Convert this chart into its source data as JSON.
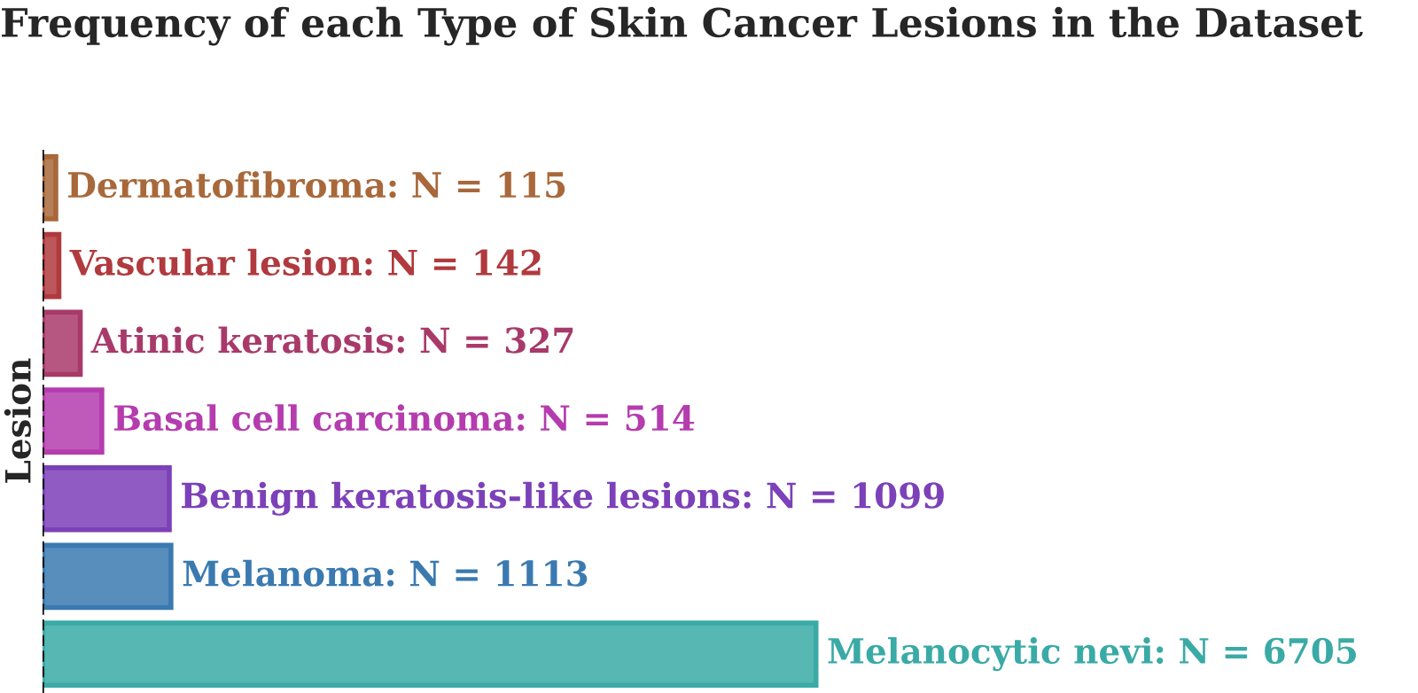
{
  "chart_data": {
    "type": "bar",
    "orientation": "horizontal",
    "title": "Frequency of each Type of Skin Cancer Lesions in the Dataset",
    "ylabel": "Lesion",
    "categories": [
      null,
      null,
      null,
      null,
      null,
      null,
      null
    ],
    "values": [
      115,
      142,
      327,
      514,
      1099,
      1113,
      6705
    ],
    "colors": [
      "#a8683a",
      "#b03a3e",
      "#a83a6a",
      "#b43cae",
      "#7c40b8",
      "#3a7ab0",
      "#3aaaa6"
    ],
    "value_labels": [
      "Dermatofibroma: N = 115",
      "Vascular lesion: N = 142",
      "Atinic keratosis: N = 327",
      "Basal cell carcinoma: N = 514",
      "Benign keratosis-like lesions: N = 1099",
      "Melanoma: N = 1113",
      "Melanocytic nevi: N = 6705"
    ],
    "tick_labels": false,
    "grid": false,
    "legend": false,
    "ref_lines": [
      {
        "axis": "x",
        "value": 0,
        "color": "#000000",
        "line_style": "dashed"
      }
    ]
  }
}
